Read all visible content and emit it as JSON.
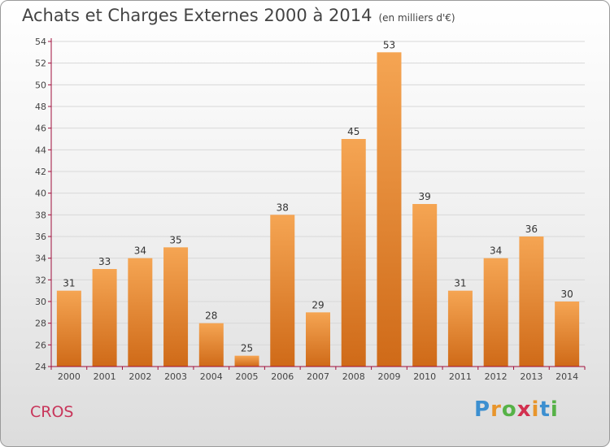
{
  "header": {
    "title": "Achats et Charges Externes 2000 à 2014",
    "unit": "(en milliers d'€)"
  },
  "footer": {
    "commune": "CROS",
    "logo_letters": [
      "P",
      "r",
      "o",
      "x",
      "i",
      "t",
      "i"
    ]
  },
  "colors": {
    "bar_top": "#f5a553",
    "bar_bottom": "#cf6a18",
    "axis": "#a00f3c",
    "grid": "#d8d8d8",
    "commune_text": "#c8355a",
    "logo": [
      "#3c8fd0",
      "#e8952b",
      "#56b247",
      "#d2304f",
      "#e8952b",
      "#3c8fd0",
      "#56b247"
    ]
  },
  "chart_data": {
    "type": "bar",
    "title": "Achats et Charges Externes 2000 à 2014",
    "subtitle": "(en milliers d'€)",
    "categories": [
      "2000",
      "2001",
      "2002",
      "2003",
      "2004",
      "2005",
      "2006",
      "2007",
      "2008",
      "2009",
      "2010",
      "2011",
      "2012",
      "2013",
      "2014"
    ],
    "values": [
      31,
      33,
      34,
      35,
      28,
      25,
      38,
      29,
      45,
      53,
      39,
      31,
      34,
      36,
      30
    ],
    "ylim": [
      24,
      54
    ],
    "yticks": [
      24,
      26,
      28,
      30,
      32,
      34,
      36,
      38,
      40,
      42,
      44,
      46,
      48,
      50,
      52,
      54
    ],
    "grid": true,
    "data_labels": true
  }
}
